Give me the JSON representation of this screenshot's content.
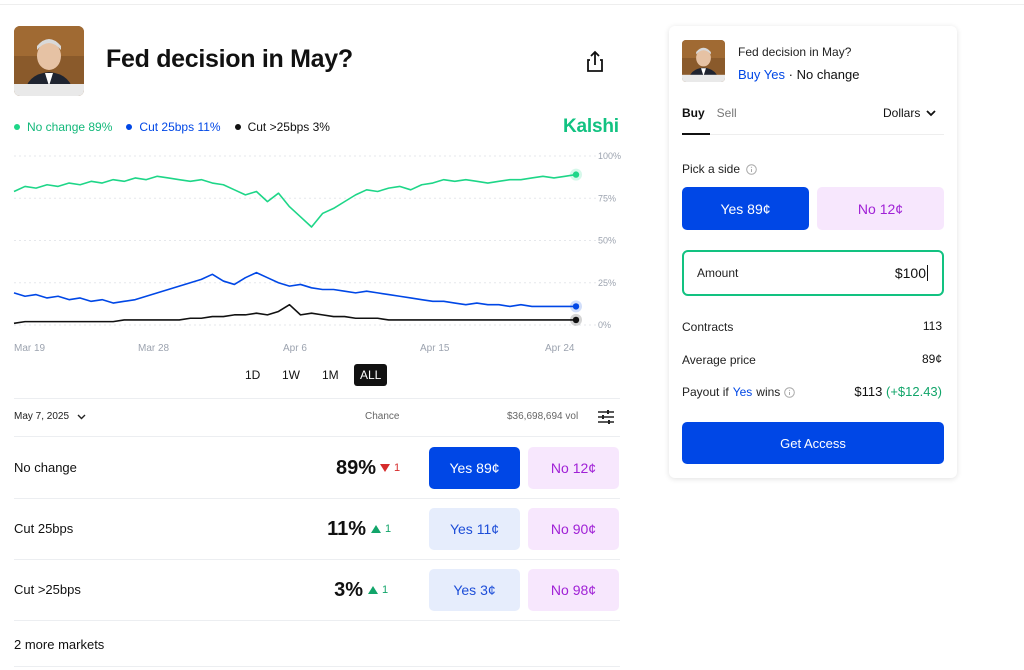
{
  "header": {
    "title": "Fed decision in May?"
  },
  "legend": [
    {
      "label": "No change 89%",
      "color": "#1ed688"
    },
    {
      "label": "Cut 25bps 11%",
      "color": "#0047e6"
    },
    {
      "label": "Cut >25bps 3%",
      "color": "#111111"
    }
  ],
  "brand": "Kalshi",
  "chart_data": {
    "type": "line",
    "x_tick_labels": [
      "Mar 19",
      "Mar 28",
      "Apr 6",
      "Apr 15",
      "Apr 24"
    ],
    "y_tick_labels": [
      "100%",
      "75%",
      "50%",
      "25%",
      "0%"
    ],
    "ylim": [
      0,
      100
    ],
    "grid": true,
    "series": [
      {
        "name": "No change",
        "color": "#1ed688",
        "values": [
          79,
          82,
          81,
          83,
          82,
          84,
          83,
          85,
          84,
          86,
          85,
          87,
          86,
          88,
          87,
          86,
          85,
          86,
          84,
          83,
          80,
          77,
          79,
          73,
          78,
          70,
          64,
          58,
          66,
          69,
          73,
          77,
          80,
          79,
          81,
          82,
          80,
          83,
          84,
          86,
          85,
          86,
          85,
          84,
          85,
          86,
          86,
          87,
          88,
          87,
          88,
          89
        ]
      },
      {
        "name": "Cut 25bps",
        "color": "#0047e6",
        "values": [
          19,
          17,
          18,
          16,
          17,
          15,
          16,
          14,
          15,
          13,
          14,
          15,
          17,
          19,
          21,
          23,
          25,
          27,
          30,
          26,
          24,
          28,
          31,
          28,
          25,
          23,
          24,
          22,
          21,
          21,
          20,
          19,
          20,
          19,
          18,
          17,
          16,
          15,
          14,
          14,
          13,
          12,
          13,
          12,
          12,
          11,
          12,
          11,
          11,
          11,
          11,
          11
        ]
      },
      {
        "name": "Cut >25bps",
        "color": "#111111",
        "values": [
          1,
          2,
          2,
          2,
          2,
          2,
          2,
          2,
          2,
          2,
          3,
          3,
          3,
          3,
          3,
          3,
          4,
          4,
          5,
          5,
          6,
          6,
          7,
          6,
          8,
          12,
          6,
          7,
          6,
          5,
          5,
          4,
          4,
          4,
          3,
          3,
          3,
          3,
          3,
          3,
          3,
          3,
          3,
          3,
          3,
          3,
          3,
          3,
          3,
          3,
          3,
          3
        ]
      }
    ]
  },
  "ranges": [
    "1D",
    "1W",
    "1M",
    "ALL"
  ],
  "table": {
    "date": "May 7, 2025",
    "chance_header": "Chance",
    "volume": "$36,698,694 vol",
    "rows": [
      {
        "name": "No change",
        "pct": "89%",
        "change": "1",
        "dir": "down",
        "yes": "Yes 89¢",
        "no": "No 12¢"
      },
      {
        "name": "Cut 25bps",
        "pct": "11%",
        "change": "1",
        "dir": "up",
        "yes": "Yes 11¢",
        "no": "No 90¢"
      },
      {
        "name": "Cut >25bps",
        "pct": "3%",
        "change": "1",
        "dir": "up",
        "yes": "Yes 3¢",
        "no": "No 98¢"
      }
    ],
    "more": "2 more markets"
  },
  "panel": {
    "question": "Fed decision in May?",
    "selection_side": "Buy Yes",
    "selection_sep": "·",
    "selection_outcome": "No change",
    "tab_buy": "Buy",
    "tab_sell": "Sell",
    "unit": "Dollars",
    "pick_label": "Pick a side",
    "yes_btn": "Yes 89¢",
    "no_btn": "No 12¢",
    "amount_label": "Amount",
    "amount_value": "$100",
    "contracts_label": "Contracts",
    "contracts_value": "113",
    "avg_label": "Average price",
    "avg_value": "89¢",
    "payout_prefix": "Payout if",
    "payout_yes": "Yes",
    "payout_suffix": "wins",
    "payout_value": "$113",
    "payout_gain": "(+$12.43)",
    "cta": "Get Access"
  }
}
